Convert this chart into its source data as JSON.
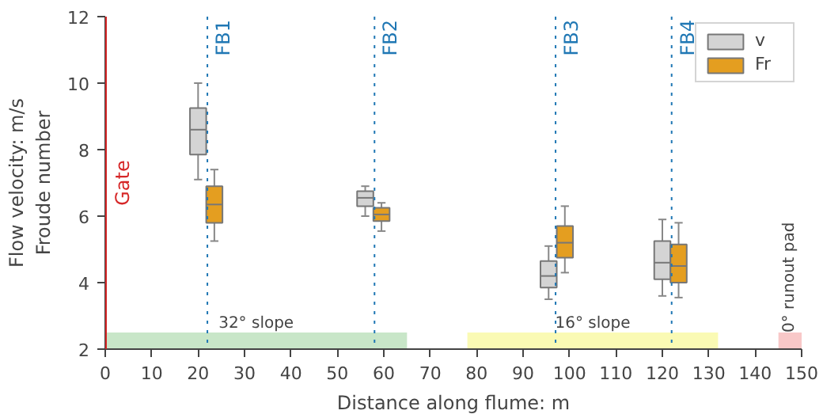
{
  "chart_data": {
    "type": "box",
    "xlabel": "Distance along flume: m",
    "ylabel": "Flow velocity: m/s\nFroude number",
    "xlim": [
      0,
      150
    ],
    "ylim": [
      2,
      12
    ],
    "xticks": [
      0,
      10,
      20,
      30,
      40,
      50,
      60,
      70,
      80,
      90,
      100,
      110,
      120,
      130,
      140,
      150
    ],
    "yticks": [
      2,
      4,
      6,
      8,
      10,
      12
    ],
    "grid": false,
    "legend": "top right",
    "series": [
      {
        "name": "v",
        "color": "#d4d4d4",
        "x": [
          20,
          56,
          95.5,
          120
        ],
        "boxes": [
          {
            "low": 7.1,
            "q1": 7.85,
            "median": 8.6,
            "q3": 9.25,
            "high": 10.0
          },
          {
            "low": 6.0,
            "q1": 6.3,
            "median": 6.55,
            "q3": 6.75,
            "high": 6.9
          },
          {
            "low": 3.5,
            "q1": 3.85,
            "median": 4.2,
            "q3": 4.65,
            "high": 5.1
          },
          {
            "low": 3.6,
            "q1": 4.1,
            "median": 4.6,
            "q3": 5.25,
            "high": 5.9
          }
        ]
      },
      {
        "name": "Fr",
        "color": "#e49e20",
        "x": [
          23.5,
          59.5,
          99,
          123.5
        ],
        "boxes": [
          {
            "low": 5.25,
            "q1": 5.8,
            "median": 6.35,
            "q3": 6.9,
            "high": 7.4
          },
          {
            "low": 5.55,
            "q1": 5.85,
            "median": 6.05,
            "q3": 6.25,
            "high": 6.4
          },
          {
            "low": 4.3,
            "q1": 4.75,
            "median": 5.2,
            "q3": 5.7,
            "high": 6.3
          },
          {
            "low": 3.55,
            "q1": 4.0,
            "median": 4.5,
            "q3": 5.15,
            "high": 5.8
          }
        ]
      }
    ],
    "ref_lines": [
      {
        "axis": "x",
        "value": 0,
        "label": "Gate",
        "color": "#d62728",
        "line_style": "solid"
      },
      {
        "axis": "x",
        "value": 22,
        "label": "FB1",
        "color": "#1f77b4",
        "line_style": "dotted"
      },
      {
        "axis": "x",
        "value": 58,
        "label": "FB2",
        "color": "#1f77b4",
        "line_style": "dotted"
      },
      {
        "axis": "x",
        "value": 97,
        "label": "FB3",
        "color": "#1f77b4",
        "line_style": "dotted"
      },
      {
        "axis": "x",
        "value": 122,
        "label": "FB4",
        "color": "#1f77b4",
        "line_style": "dotted"
      }
    ],
    "bands": [
      {
        "axis": "x",
        "from": 0,
        "to": 65,
        "label": "32° slope",
        "color": "#c8e6c8"
      },
      {
        "axis": "x",
        "from": 78,
        "to": 132,
        "label": "16° slope",
        "color": "#fafab4"
      },
      {
        "axis": "x",
        "from": 145,
        "to": 150,
        "label": "0° runout pad",
        "color": "#f8c8c8"
      }
    ]
  }
}
